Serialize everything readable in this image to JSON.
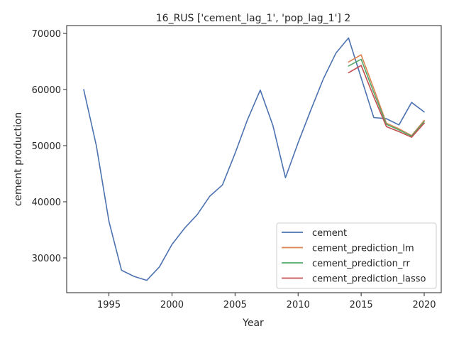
{
  "chart_data": {
    "type": "line",
    "title": "16_RUS ['cement_lag_1', 'pop_lag_1'] 2",
    "xlabel": "Year",
    "ylabel": "cement production",
    "xlim": [
      1991.65,
      2021.35
    ],
    "ylim": [
      23800,
      71400
    ],
    "x_ticks": [
      1995,
      2000,
      2005,
      2010,
      2015,
      2020
    ],
    "y_ticks": [
      30000,
      40000,
      50000,
      60000,
      70000
    ],
    "grid": false,
    "legend_position": "lower-right",
    "series": [
      {
        "name": "cement",
        "color": "#4c72b0",
        "x": [
          1993,
          1994,
          1995,
          1996,
          1997,
          1998,
          1999,
          2000,
          2001,
          2002,
          2003,
          2004,
          2005,
          2006,
          2007,
          2008,
          2009,
          2010,
          2011,
          2012,
          2013,
          2014,
          2015,
          2016,
          2017,
          2018,
          2019,
          2020
        ],
        "y": [
          60000,
          50000,
          36500,
          27800,
          26700,
          26000,
          28400,
          32400,
          35300,
          37700,
          41000,
          43000,
          48600,
          54700,
          59900,
          53600,
          44300,
          50500,
          56300,
          61900,
          66500,
          69200,
          62100,
          55000,
          54800,
          53700,
          57700,
          56000
        ]
      },
      {
        "name": "cement_prediction_lm",
        "color": "#dd8452",
        "x": [
          2014,
          2015,
          2016,
          2017,
          2018,
          2019,
          2020
        ],
        "y": [
          64900,
          66200,
          60200,
          54000,
          53000,
          51800,
          54500
        ]
      },
      {
        "name": "cement_prediction_rr",
        "color": "#55a868",
        "x": [
          2014,
          2015,
          2016,
          2017,
          2018,
          2019,
          2020
        ],
        "y": [
          64200,
          65400,
          59500,
          53800,
          52800,
          51700,
          54300
        ]
      },
      {
        "name": "cement_prediction_lasso",
        "color": "#c44e52",
        "x": [
          2014,
          2015,
          2016,
          2017,
          2018,
          2019,
          2020
        ],
        "y": [
          63000,
          64300,
          58700,
          53400,
          52500,
          51500,
          54000
        ]
      }
    ]
  }
}
